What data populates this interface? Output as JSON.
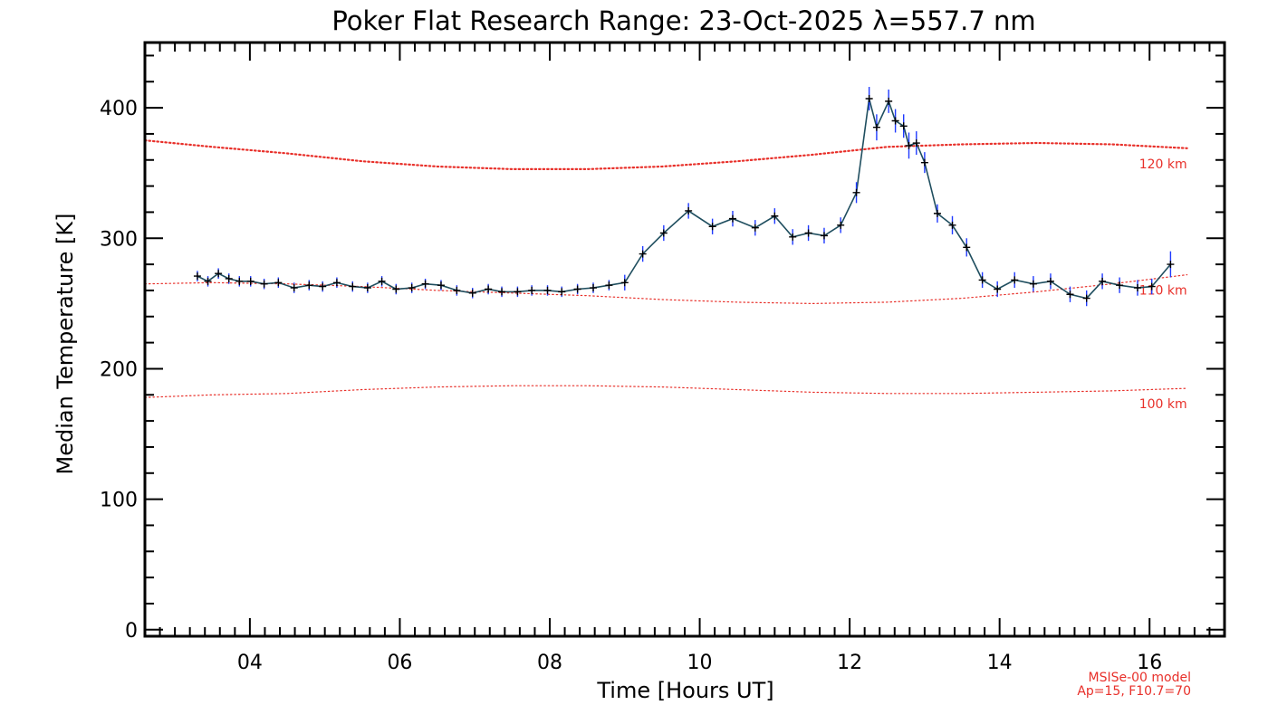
{
  "chart_data": {
    "type": "line",
    "title": "Poker Flat Research Range: 23-Oct-2025 λ=557.7 nm",
    "xlabel": "Time [Hours UT]",
    "ylabel": "Median Temperature [K]",
    "xlim": [
      2.6,
      17.0
    ],
    "ylim": [
      -5,
      450
    ],
    "x_ticks": [
      4,
      6,
      8,
      10,
      12,
      14,
      16
    ],
    "x_tick_labels": [
      "04",
      "06",
      "08",
      "10",
      "12",
      "14",
      "16"
    ],
    "y_ticks": [
      0,
      100,
      200,
      300,
      400
    ],
    "y_tick_labels": [
      "0",
      "100",
      "200",
      "300",
      "400"
    ],
    "colors": {
      "data_line": "#1f4e5f",
      "marker": "#000000",
      "error_bar": "#1f3aff",
      "model_line": "#e8302a"
    },
    "series": [
      {
        "name": "Median temperature 557.7 nm",
        "x": [
          3.3,
          3.44,
          3.58,
          3.72,
          3.86,
          4.01,
          4.19,
          4.38,
          4.59,
          4.79,
          4.97,
          5.16,
          5.37,
          5.57,
          5.76,
          5.95,
          6.16,
          6.34,
          6.55,
          6.76,
          6.97,
          7.18,
          7.36,
          7.57,
          7.76,
          7.97,
          8.16,
          8.37,
          8.58,
          8.79,
          9.0,
          9.24,
          9.52,
          9.85,
          10.17,
          10.44,
          10.74,
          11.0,
          11.24,
          11.45,
          11.66,
          11.88,
          12.09,
          12.26,
          12.36,
          12.52,
          12.61,
          12.72,
          12.79,
          12.89,
          13.0,
          13.17,
          13.37,
          13.56,
          13.77,
          13.97,
          14.2,
          14.45,
          14.68,
          14.94,
          15.16,
          15.37,
          15.6,
          15.84,
          16.03,
          16.28
        ],
        "values": [
          271,
          267,
          273,
          269,
          267,
          267,
          265,
          266,
          262,
          264,
          263,
          266,
          263,
          262,
          267,
          261,
          262,
          265,
          264,
          260,
          258,
          261,
          259,
          259,
          260,
          260,
          259,
          261,
          262,
          264,
          266,
          288,
          304,
          321,
          309,
          315,
          308,
          317,
          301,
          304,
          302,
          310,
          335,
          407,
          385,
          405,
          390,
          386,
          371,
          373,
          358,
          319,
          310,
          293,
          268,
          261,
          268,
          265,
          267,
          257,
          254,
          267,
          264,
          262,
          263,
          280
        ],
        "errors": [
          4,
          4,
          4,
          4,
          4,
          4,
          4,
          4,
          4,
          4,
          4,
          4,
          4,
          4,
          4,
          4,
          4,
          4,
          4,
          4,
          4,
          4,
          4,
          4,
          4,
          4,
          4,
          4,
          4,
          4,
          6,
          6,
          6,
          6,
          6,
          6,
          6,
          6,
          6,
          6,
          6,
          6,
          8,
          9,
          10,
          9,
          9,
          9,
          10,
          9,
          8,
          7,
          7,
          7,
          6,
          6,
          6,
          6,
          6,
          6,
          6,
          6,
          6,
          6,
          6,
          10
        ]
      }
    ],
    "model_curves": [
      {
        "name": "120 km",
        "label": "120 km",
        "x": [
          2.6,
          3.5,
          4.5,
          5.5,
          6.5,
          7.5,
          8.5,
          9.5,
          10.5,
          11.5,
          12.5,
          13.5,
          14.5,
          15.5,
          16.5
        ],
        "values": [
          375,
          370,
          365,
          359,
          355,
          353,
          353,
          355,
          359,
          364,
          370,
          372,
          373,
          372,
          369
        ]
      },
      {
        "name": "110 km",
        "label": "110 km",
        "x": [
          2.6,
          3.5,
          4.5,
          5.5,
          6.5,
          7.5,
          8.5,
          9.5,
          10.5,
          11.5,
          12.5,
          13.5,
          14.5,
          15.5,
          16.5
        ],
        "values": [
          265,
          266,
          265,
          263,
          260,
          258,
          256,
          253,
          251,
          250,
          251,
          254,
          259,
          265,
          272
        ]
      },
      {
        "name": "100 km",
        "label": "100 km",
        "x": [
          2.6,
          3.5,
          4.5,
          5.5,
          6.5,
          7.5,
          8.5,
          9.5,
          10.5,
          11.5,
          12.5,
          13.5,
          14.5,
          15.5,
          16.5
        ],
        "values": [
          178,
          180,
          181,
          184,
          186,
          187,
          187,
          186,
          184,
          182,
          181,
          181,
          182,
          183,
          185
        ]
      }
    ],
    "model_note": [
      "MSISe-00 model",
      "Ap=15, F10.7=70"
    ]
  }
}
